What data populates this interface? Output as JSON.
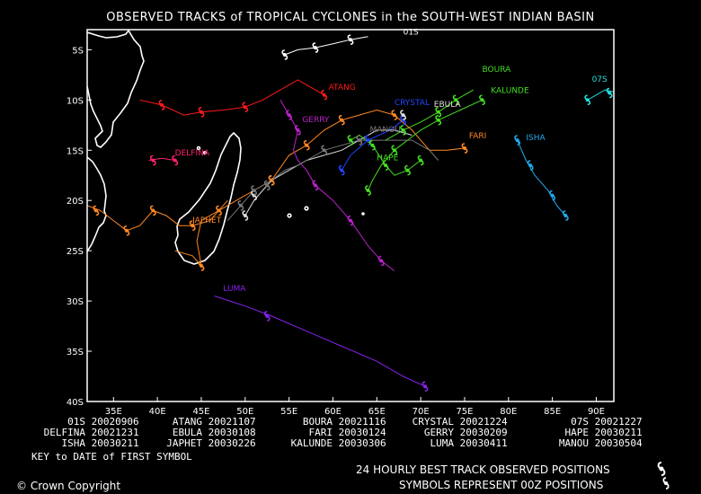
{
  "title": "OBSERVED TRACKS of TROPICAL CYCLONES in the SOUTH-WEST INDIAN BASIN",
  "map": {
    "lon_range": [
      32,
      92
    ],
    "lat_range": [
      -40,
      -3
    ],
    "lon_ticks": [
      "35E",
      "40E",
      "45E",
      "50E",
      "55E",
      "60E",
      "65E",
      "70E",
      "75E",
      "80E",
      "85E",
      "90E"
    ],
    "lat_ticks": [
      "5S",
      "10S",
      "15S",
      "20S",
      "25S",
      "30S",
      "35S",
      "40S"
    ]
  },
  "storms": [
    {
      "name": "01S",
      "color": "#ffffff",
      "label_pos": [
        68,
        -3.5
      ],
      "track": [
        [
          54.5,
          -5.5
        ],
        [
          56,
          -5
        ],
        [
          58,
          -4.8
        ],
        [
          60,
          -4.4
        ],
        [
          62,
          -4
        ],
        [
          64,
          -3.7
        ]
      ]
    },
    {
      "name": "ATANG",
      "color": "#ff1a1a",
      "label_pos": [
        59.5,
        -9
      ],
      "track": [
        [
          38,
          -10
        ],
        [
          40.5,
          -10.5
        ],
        [
          43,
          -11.5
        ],
        [
          45,
          -11.2
        ],
        [
          47.5,
          -11
        ],
        [
          50,
          -10.7
        ],
        [
          52,
          -10
        ],
        [
          54,
          -9
        ],
        [
          56,
          -8
        ],
        [
          58,
          -9
        ],
        [
          59,
          -9.5
        ]
      ]
    },
    {
      "name": "BOURA",
      "color": "#44dd22",
      "label_pos": [
        77,
        -7.2
      ],
      "track": [
        [
          66,
          -14
        ],
        [
          68,
          -13
        ],
        [
          70,
          -12.2
        ],
        [
          72,
          -11.2
        ],
        [
          74,
          -10
        ],
        [
          76,
          -9
        ]
      ]
    },
    {
      "name": "CRYSTAL",
      "color": "#2244ff",
      "label_pos": [
        67,
        -10.5
      ],
      "track": [
        [
          61,
          -17
        ],
        [
          62,
          -15.5
        ],
        [
          64,
          -14
        ],
        [
          66.5,
          -13
        ],
        [
          68,
          -12
        ]
      ]
    },
    {
      "name": "07S",
      "color": "#22dddd",
      "label_pos": [
        89.5,
        -8.2
      ],
      "track": [
        [
          89,
          -10
        ],
        [
          90,
          -9.5
        ],
        [
          91,
          -9
        ],
        [
          92,
          -9.2
        ]
      ]
    },
    {
      "name": "DELFINA",
      "color": "#ff2266",
      "label_pos": [
        42,
        -15.5
      ],
      "track": [
        [
          39,
          -16
        ],
        [
          40.5,
          -15.8
        ],
        [
          42,
          -16
        ]
      ]
    },
    {
      "name": "EBULA",
      "color": "#dddddd",
      "label_pos": [
        71.5,
        -10.7
      ],
      "track": [
        [
          50,
          -21.5
        ],
        [
          51,
          -20
        ],
        [
          52,
          -19
        ],
        [
          53,
          -18
        ],
        [
          55,
          -17
        ],
        [
          57,
          -16
        ],
        [
          59,
          -15.5
        ],
        [
          61,
          -15
        ],
        [
          63,
          -14
        ],
        [
          65,
          -13
        ],
        [
          67,
          -13
        ],
        [
          69,
          -13.5
        ]
      ]
    },
    {
      "name": "FARI",
      "color": "#ff8822",
      "label_pos": [
        75.5,
        -13.8
      ],
      "track": [
        [
          42,
          -25
        ],
        [
          44,
          -25.5
        ],
        [
          45,
          -26.5
        ],
        [
          44.5,
          -24
        ],
        [
          45,
          -22
        ],
        [
          47,
          -21
        ],
        [
          49,
          -20
        ],
        [
          51,
          -19
        ],
        [
          53,
          -18
        ],
        [
          55,
          -15.5
        ],
        [
          57,
          -14.5
        ],
        [
          59,
          -13
        ],
        [
          61,
          -12
        ],
        [
          63,
          -11.5
        ],
        [
          65,
          -11
        ],
        [
          67,
          -11.5
        ],
        [
          69,
          -13
        ],
        [
          70,
          -14
        ],
        [
          71,
          -15
        ],
        [
          73,
          -15
        ],
        [
          75,
          -14.8
        ]
      ]
    },
    {
      "name": "GERRY",
      "color": "#bb22cc",
      "label_pos": [
        56.5,
        -12.2
      ],
      "track": [
        [
          54,
          -10
        ],
        [
          55,
          -11.5
        ],
        [
          56,
          -13
        ],
        [
          55.5,
          -15
        ],
        [
          56,
          -16
        ],
        [
          57,
          -17
        ],
        [
          58,
          -18.5
        ],
        [
          60,
          -20
        ],
        [
          62,
          -22
        ],
        [
          64,
          -24.5
        ],
        [
          65.5,
          -26
        ],
        [
          67,
          -27
        ]
      ]
    },
    {
      "name": "HAPE",
      "color": "#44dd22",
      "label_pos": [
        65,
        -16
      ],
      "track": [
        [
          62,
          -14
        ],
        [
          63,
          -13.5
        ],
        [
          64.5,
          -14.5
        ],
        [
          66,
          -16.5
        ],
        [
          67,
          -17.5
        ],
        [
          68.5,
          -17
        ],
        [
          70,
          -16
        ]
      ]
    },
    {
      "name": "ISHA",
      "color": "#22aaee",
      "label_pos": [
        82,
        -14
      ],
      "track": [
        [
          81,
          -14
        ],
        [
          82,
          -16
        ],
        [
          83,
          -17.5
        ],
        [
          84.5,
          -19
        ],
        [
          85.5,
          -20.5
        ],
        [
          86.5,
          -21.5
        ]
      ]
    },
    {
      "name": "JAPHET",
      "color": "#ff8822",
      "label_pos": [
        44,
        -22.2
      ],
      "track": [
        [
          32,
          -20.5
        ],
        [
          33.5,
          -21
        ],
        [
          35,
          -22
        ],
        [
          36.5,
          -23
        ],
        [
          38,
          -22.5
        ],
        [
          39.5,
          -21
        ],
        [
          41,
          -21.5
        ],
        [
          42.5,
          -22.5
        ],
        [
          44,
          -22.5
        ],
        [
          46,
          -22
        ],
        [
          48,
          -20
        ]
      ]
    },
    {
      "name": "KALUNDE",
      "color": "#44dd22",
      "label_pos": [
        78,
        -9.3
      ],
      "track": [
        [
          64,
          -19
        ],
        [
          64.5,
          -18
        ],
        [
          65.5,
          -16.5
        ],
        [
          67,
          -15
        ],
        [
          68.5,
          -14
        ],
        [
          70,
          -13
        ],
        [
          72,
          -12
        ],
        [
          74.5,
          -11
        ],
        [
          77,
          -10
        ]
      ]
    },
    {
      "name": "LUMA",
      "color": "#8822ee",
      "label_pos": [
        47.5,
        -29
      ],
      "track": [
        [
          46.5,
          -29.5
        ],
        [
          50,
          -30.5
        ],
        [
          53,
          -31.5
        ],
        [
          57,
          -33
        ],
        [
          61,
          -34.5
        ],
        [
          65,
          -36
        ],
        [
          68,
          -37.5
        ],
        [
          70.5,
          -38.5
        ]
      ]
    },
    {
      "name": "MANOU",
      "color": "#777777",
      "label_pos": [
        64.2,
        -13.2
      ],
      "track": [
        [
          48,
          -22
        ],
        [
          49,
          -21
        ],
        [
          50,
          -20
        ],
        [
          51,
          -19
        ],
        [
          52,
          -18.5
        ],
        [
          53,
          -18
        ],
        [
          54.5,
          -17
        ],
        [
          56,
          -16.5
        ],
        [
          57,
          -16
        ],
        [
          59,
          -15
        ],
        [
          61,
          -14.5
        ],
        [
          63,
          -14
        ],
        [
          65,
          -14
        ],
        [
          67,
          -14
        ],
        [
          69,
          -14
        ],
        [
          71,
          -15
        ],
        [
          72,
          -16
        ]
      ]
    }
  ],
  "symbols": [
    {
      "c": "#ffffff",
      "p": [
        [
          54.5,
          -5.5
        ],
        [
          58,
          -4.8
        ],
        [
          62,
          -4
        ]
      ]
    },
    {
      "c": "#ff1a1a",
      "p": [
        [
          40.5,
          -10.5
        ],
        [
          45,
          -11.2
        ],
        [
          50,
          -10.7
        ],
        [
          59,
          -9.5
        ]
      ]
    },
    {
      "c": "#44dd22",
      "p": [
        [
          68,
          -13
        ],
        [
          72,
          -11.2
        ],
        [
          74,
          -10
        ]
      ]
    },
    {
      "c": "#2244ff",
      "p": [
        [
          61,
          -17
        ],
        [
          64,
          -14
        ],
        [
          68,
          -12
        ]
      ]
    },
    {
      "c": "#22dddd",
      "p": [
        [
          89,
          -10
        ],
        [
          91.5,
          -9.3
        ]
      ]
    },
    {
      "c": "#ff2266",
      "p": [
        [
          39.5,
          -16
        ],
        [
          42,
          -16
        ]
      ]
    },
    {
      "c": "#dddddd",
      "p": [
        [
          50,
          -21.5
        ],
        [
          51,
          -19.5
        ],
        [
          53,
          -18
        ],
        [
          68,
          -11.5
        ]
      ]
    },
    {
      "c": "#ff8822",
      "p": [
        [
          45,
          -26.5
        ],
        [
          47,
          -21
        ],
        [
          53,
          -18
        ],
        [
          57,
          -14.5
        ],
        [
          61,
          -12
        ],
        [
          67,
          -11.5
        ],
        [
          75,
          -14.8
        ],
        [
          44,
          -22.5
        ],
        [
          36.5,
          -23
        ],
        [
          39.5,
          -21
        ],
        [
          33,
          -21
        ]
      ]
    },
    {
      "c": "#bb22cc",
      "p": [
        [
          55,
          -11.5
        ],
        [
          56,
          -13
        ],
        [
          58,
          -18.5
        ],
        [
          62,
          -22
        ],
        [
          65.5,
          -26
        ]
      ]
    },
    {
      "c": "#44dd22",
      "p": [
        [
          66,
          -16.5
        ],
        [
          68.5,
          -17
        ],
        [
          64.5,
          -14.5
        ],
        [
          70,
          -16
        ],
        [
          64,
          -19
        ],
        [
          67,
          -15
        ],
        [
          72,
          -12
        ],
        [
          77,
          -10
        ],
        [
          62,
          -14
        ]
      ]
    },
    {
      "c": "#22aaee",
      "p": [
        [
          81,
          -14
        ],
        [
          82.5,
          -16.5
        ],
        [
          85,
          -19.5
        ],
        [
          86.5,
          -21.5
        ]
      ]
    },
    {
      "c": "#8822ee",
      "p": [
        [
          52.5,
          -31.5
        ],
        [
          70.5,
          -38.5
        ]
      ]
    },
    {
      "c": "#777777",
      "p": [
        [
          49.5,
          -20.5
        ],
        [
          51,
          -19
        ],
        [
          52.5,
          -18.5
        ],
        [
          59,
          -15
        ],
        [
          63,
          -14
        ]
      ]
    }
  ],
  "key": {
    "rows": [
      [
        [
          "01S",
          "20020906"
        ],
        [
          "ATANG",
          "20021107"
        ],
        [
          "BOURA",
          "20021116"
        ],
        [
          "CRYSTAL",
          "20021224"
        ],
        [
          "07S",
          "20021227"
        ]
      ],
      [
        [
          "DELFINA",
          "20021231"
        ],
        [
          "EBULA",
          "20030108"
        ],
        [
          "FARI",
          "20030124"
        ],
        [
          "GERRY",
          "20030209"
        ],
        [
          "HAPE",
          "20030211"
        ]
      ],
      [
        [
          "ISHA",
          "20030211"
        ],
        [
          "JAPHET",
          "20030226"
        ],
        [
          "KALUNDE",
          "20030306"
        ],
        [
          "LUMA",
          "20030411"
        ],
        [
          "MANOU",
          "20030504"
        ]
      ]
    ],
    "caption": "KEY to DATE of FIRST SYMBOL"
  },
  "footer": {
    "copyright": "Crown Copyright",
    "line1": "24 HOURLY BEST TRACK OBSERVED POSITIONS",
    "line2": "SYMBOLS REPRESENT 00Z POSITIONS"
  }
}
